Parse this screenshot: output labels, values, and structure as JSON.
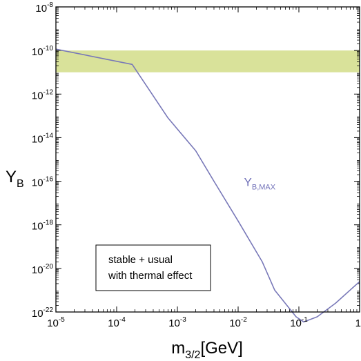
{
  "chart_data": {
    "type": "line",
    "x_scale": "log",
    "y_scale": "log",
    "xlim": [
      1e-05,
      1
    ],
    "ylim": [
      1e-22,
      1e-08
    ],
    "xlabel": {
      "base": "m",
      "sub": "3/2",
      "rest": "[GeV]"
    },
    "ylabel": {
      "base": "Y",
      "sub": "B"
    },
    "x_ticks": [
      {
        "base": "10",
        "exp": "-5",
        "value": 1e-05
      },
      {
        "base": "10",
        "exp": "-4",
        "value": 0.0001
      },
      {
        "base": "10",
        "exp": "-3",
        "value": 0.001
      },
      {
        "base": "10",
        "exp": "-2",
        "value": 0.01
      },
      {
        "base": "10",
        "exp": "-1",
        "value": 0.1
      },
      {
        "base": "1",
        "exp": "",
        "value": 1
      }
    ],
    "y_ticks": [
      {
        "base": "10",
        "exp": "-8",
        "value": 1e-08
      },
      {
        "base": "10",
        "exp": "-10",
        "value": 1e-10
      },
      {
        "base": "10",
        "exp": "-12",
        "value": 1e-12
      },
      {
        "base": "10",
        "exp": "-14",
        "value": 1e-14
      },
      {
        "base": "10",
        "exp": "-16",
        "value": 1e-16
      },
      {
        "base": "10",
        "exp": "-18",
        "value": 1e-18
      },
      {
        "base": "10",
        "exp": "-20",
        "value": 1e-20
      },
      {
        "base": "10",
        "exp": "-22",
        "value": 1e-22
      }
    ],
    "band": {
      "y_low": 1e-11,
      "y_high": 1e-10,
      "color": "#d9e29a"
    },
    "series": [
      {
        "name": "Y_B,MAX",
        "label_base": "Y",
        "label_sub": "B,MAX",
        "label_at": {
          "x": 0.0125,
          "y": 6e-17
        },
        "color": "#7878b8",
        "points": [
          {
            "x": 1e-05,
            "y": 1.15e-10
          },
          {
            "x": 0.00018,
            "y": 2.3e-11
          },
          {
            "x": 0.0007,
            "y": 8e-14
          },
          {
            "x": 0.002,
            "y": 2.5e-15
          },
          {
            "x": 0.004,
            "y": 1e-16
          },
          {
            "x": 0.01,
            "y": 1.5e-18
          },
          {
            "x": 0.025,
            "y": 2e-20
          },
          {
            "x": 0.04,
            "y": 1e-21
          },
          {
            "x": 0.09,
            "y": 6e-23
          },
          {
            "x": 0.12,
            "y": 3.5e-23
          },
          {
            "x": 0.2,
            "y": 6e-23
          },
          {
            "x": 0.4,
            "y": 2.5e-22
          },
          {
            "x": 1,
            "y": 2.5e-21
          }
        ]
      }
    ],
    "annotation": {
      "lines": [
        "stable + usual",
        "with thermal effect"
      ]
    }
  }
}
